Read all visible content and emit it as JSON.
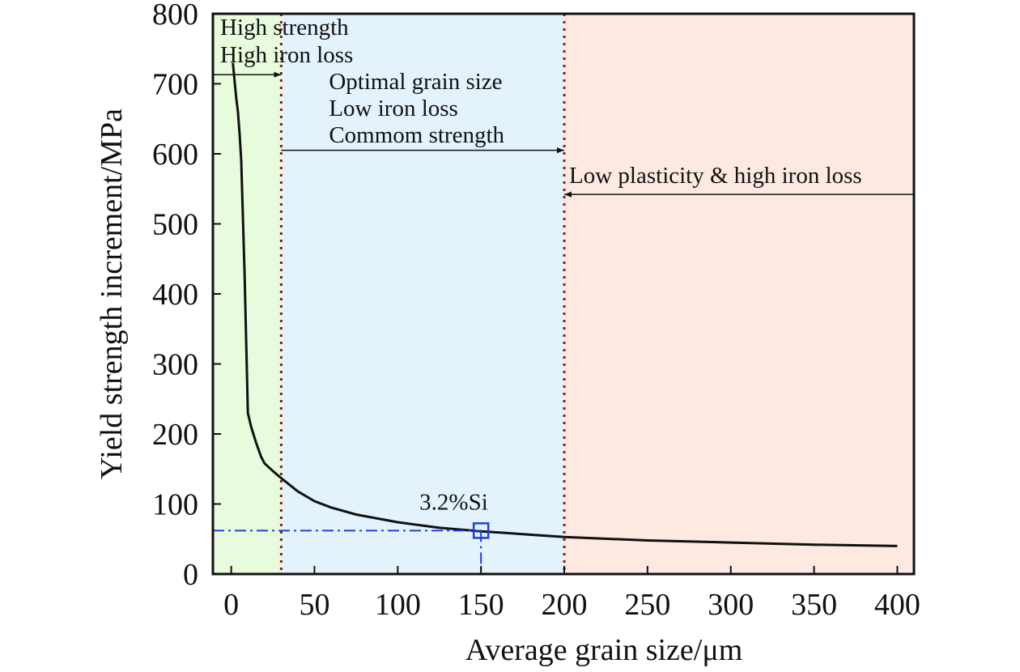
{
  "chart_data": {
    "type": "line",
    "title": "",
    "xlabel": "Average grain size/μm",
    "ylabel": "Yield strength increment/MPa",
    "xlim": [
      -11,
      410
    ],
    "ylim": [
      0,
      800
    ],
    "xticks": [
      0,
      50,
      100,
      150,
      200,
      250,
      300,
      350,
      400
    ],
    "yticks": [
      0,
      100,
      200,
      300,
      400,
      500,
      600,
      700,
      800
    ],
    "grid": false,
    "legend": "none",
    "regions": [
      {
        "from": -11,
        "to": 30,
        "color": "#e8fbdc"
      },
      {
        "from": 30,
        "to": 200,
        "color": "#e4f3fb"
      },
      {
        "from": 200,
        "to": 410,
        "color": "#fde8e2"
      }
    ],
    "boundaries": [
      30,
      200
    ],
    "boundary_color": "#8b1a1a",
    "series": [
      {
        "name": "",
        "color": "#111111",
        "x": [
          1,
          2,
          3,
          4,
          5,
          6,
          8,
          10,
          12,
          15,
          18,
          20,
          25,
          30,
          40,
          50,
          60,
          75,
          100,
          125,
          150,
          175,
          200,
          250,
          300,
          350,
          400
        ],
        "y": [
          730,
          705,
          680,
          660,
          630,
          590,
          430,
          230,
          210,
          187,
          167,
          158,
          147,
          137,
          118,
          104,
          95,
          85,
          74,
          66,
          61,
          57,
          53,
          48,
          45,
          42,
          40
        ]
      }
    ],
    "annotations": [
      {
        "id": "region1",
        "lines": [
          "High strength",
          "High iron loss"
        ],
        "arrow_from": -11,
        "arrow_to": 30,
        "arrow_y": 713
      },
      {
        "id": "region2",
        "lines": [
          "Optimal grain size",
          "Low iron loss",
          "Commom strength"
        ],
        "arrow_from": 30,
        "arrow_to": 200,
        "arrow_y": 605
      },
      {
        "id": "region3",
        "lines": [
          "Low plasticity & high iron loss"
        ],
        "arrow_from": 410,
        "arrow_to": 200,
        "arrow_y": 542
      }
    ],
    "marker": {
      "x": 150,
      "y": 62,
      "label": "3.2%Si",
      "color": "#1f3fd6"
    }
  }
}
